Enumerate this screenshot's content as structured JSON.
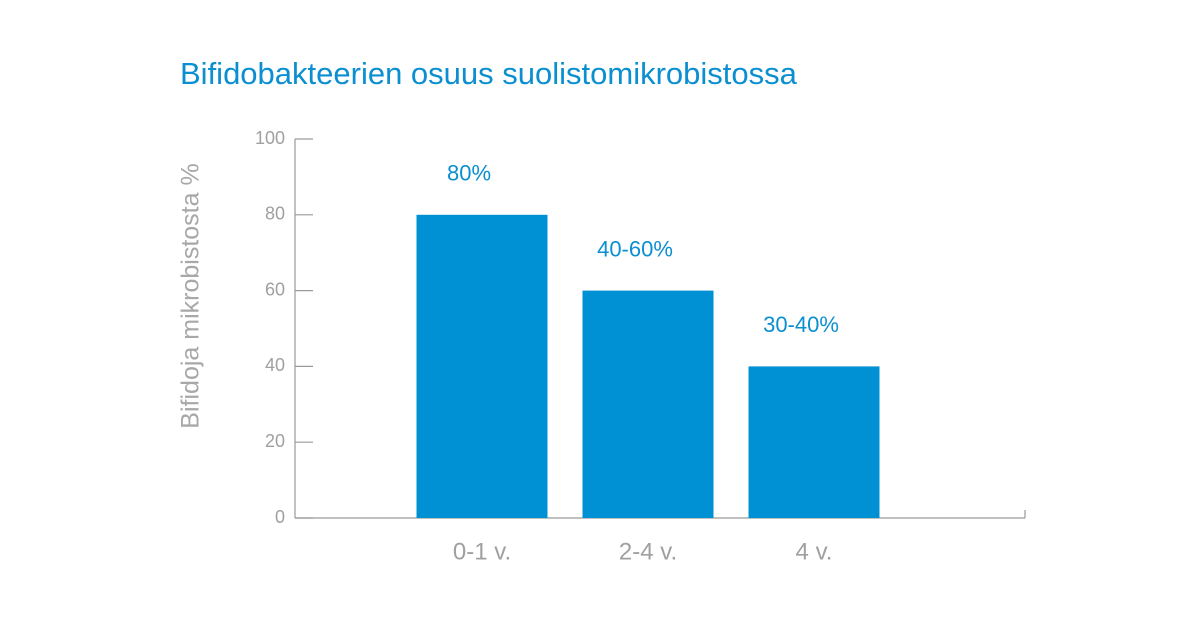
{
  "chart_data": {
    "type": "bar",
    "title": "Bifidobakteerien osuus suolistomikrobistossa",
    "y_label": "Bifidoja mikrobistosta %",
    "categories": [
      "0-1 v.",
      "2-4 v.",
      "4 v."
    ],
    "values": [
      80,
      60,
      40
    ],
    "annotations": [
      "80%",
      "40-60%",
      "30-40%"
    ],
    "color": "#0090d4",
    "ylim": [
      0,
      100
    ],
    "yticks": [
      0,
      20,
      40,
      60,
      80,
      100
    ],
    "grid": false
  }
}
